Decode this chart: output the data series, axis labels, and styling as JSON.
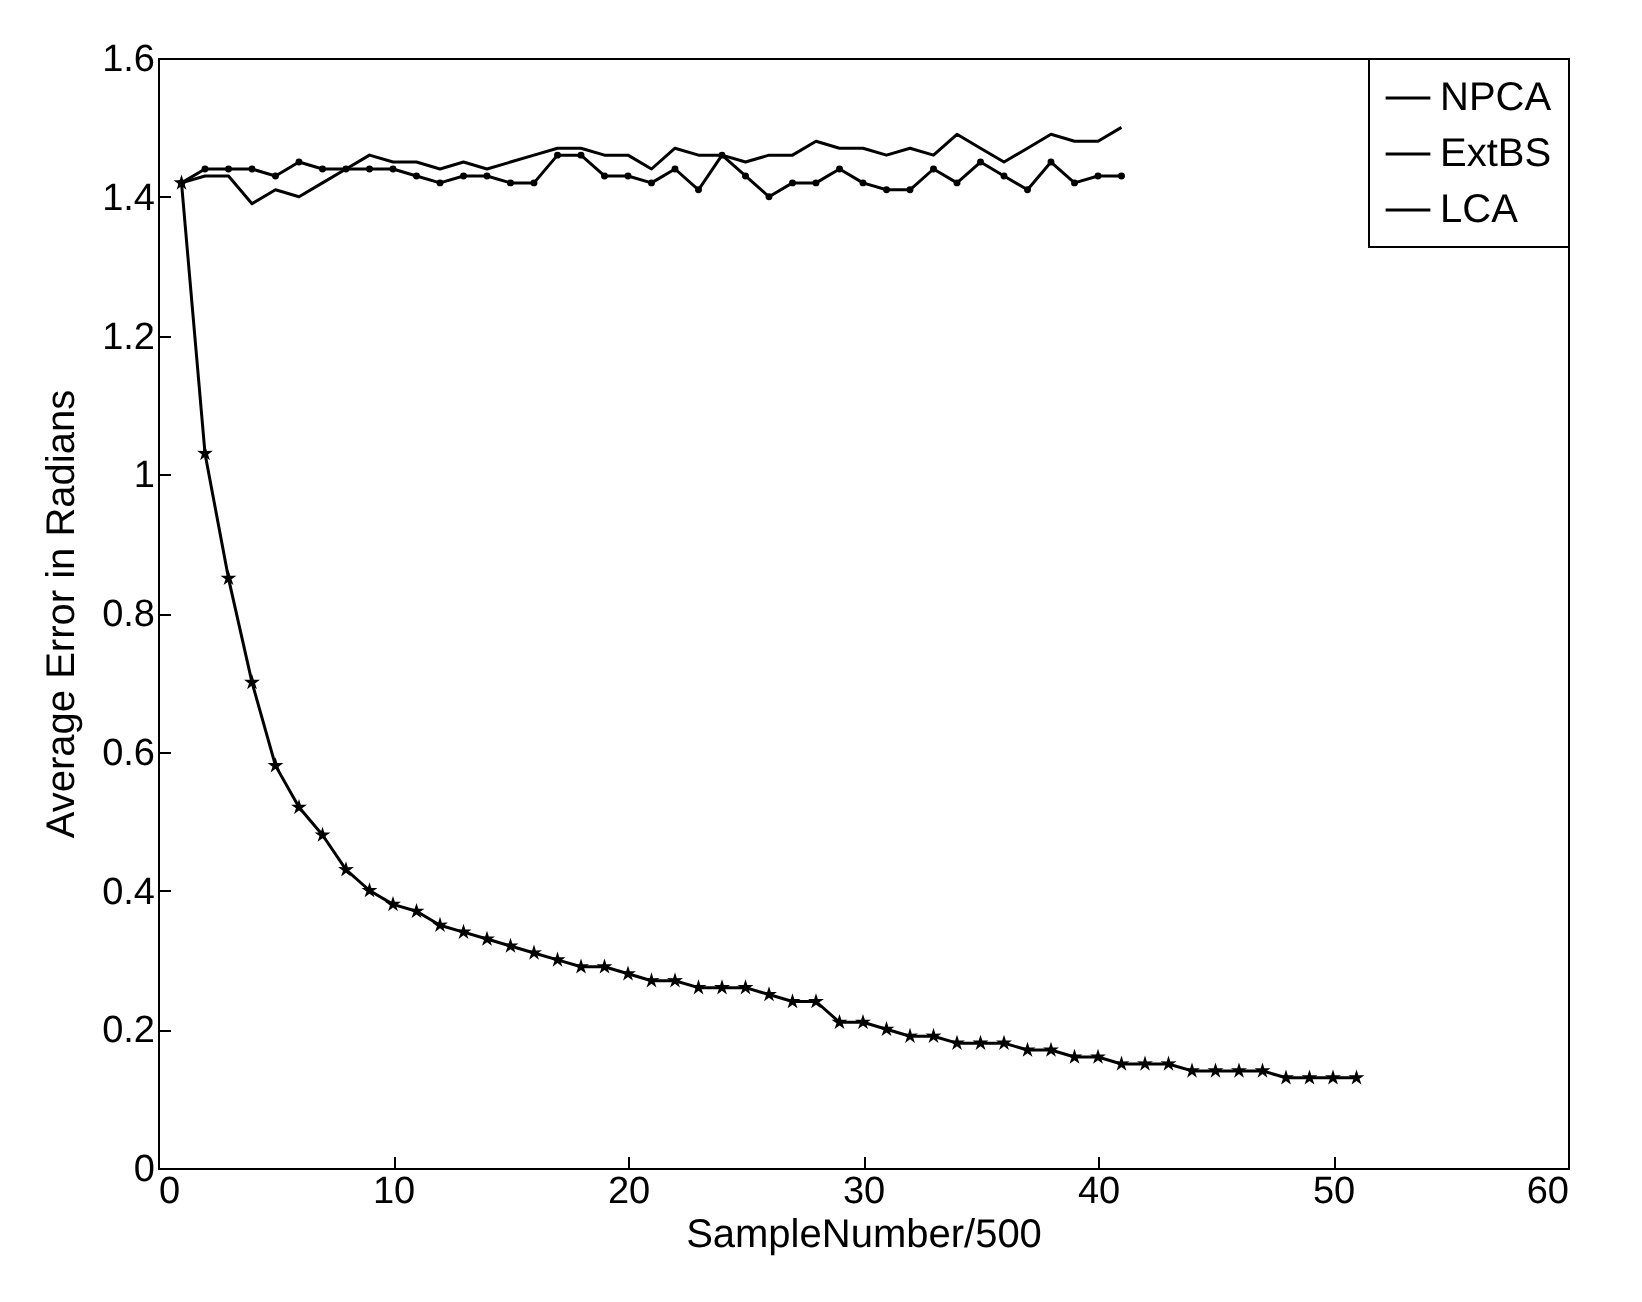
{
  "chart_data": {
    "type": "line",
    "xlabel": "SampleNumber/500",
    "ylabel": "Average Error in Radians",
    "x": [
      1,
      2,
      3,
      4,
      5,
      6,
      7,
      8,
      9,
      10,
      11,
      12,
      13,
      14,
      15,
      16,
      17,
      18,
      19,
      20,
      21,
      22,
      23,
      24,
      25,
      26,
      27,
      28,
      29,
      30,
      31,
      32,
      33,
      34,
      35,
      36,
      37,
      38,
      39,
      40,
      41,
      42,
      43,
      44,
      45,
      46,
      47,
      48,
      49,
      50,
      51
    ],
    "series": [
      {
        "name": "NPCA",
        "color": "#000000",
        "marker": "none",
        "values": [
          1.42,
          1.43,
          1.43,
          1.39,
          1.41,
          1.4,
          1.42,
          1.44,
          1.46,
          1.45,
          1.45,
          1.44,
          1.45,
          1.44,
          1.45,
          1.46,
          1.47,
          1.47,
          1.46,
          1.46,
          1.44,
          1.47,
          1.46,
          1.46,
          1.45,
          1.46,
          1.46,
          1.48,
          1.47,
          1.47,
          1.46,
          1.47,
          1.46,
          1.49,
          1.47,
          1.45,
          1.47,
          1.49,
          1.48,
          1.48,
          1.5,
          null,
          null,
          null,
          null,
          null,
          null,
          null,
          null,
          null,
          null
        ]
      },
      {
        "name": "ExtBS",
        "color": "#000000",
        "marker": "circle",
        "values": [
          1.42,
          1.44,
          1.44,
          1.44,
          1.43,
          1.45,
          1.44,
          1.44,
          1.44,
          1.44,
          1.43,
          1.42,
          1.43,
          1.43,
          1.42,
          1.42,
          1.46,
          1.46,
          1.43,
          1.43,
          1.42,
          1.44,
          1.41,
          1.46,
          1.43,
          1.4,
          1.42,
          1.42,
          1.44,
          1.42,
          1.41,
          1.41,
          1.44,
          1.42,
          1.45,
          1.43,
          1.41,
          1.45,
          1.42,
          1.43,
          1.43,
          null,
          null,
          null,
          null,
          null,
          null,
          null,
          null,
          null,
          null
        ]
      },
      {
        "name": "LCA",
        "color": "#000000",
        "marker": "star",
        "values": [
          1.42,
          1.03,
          0.85,
          0.7,
          0.58,
          0.52,
          0.48,
          0.43,
          0.4,
          0.38,
          0.37,
          0.35,
          0.34,
          0.33,
          0.32,
          0.31,
          0.3,
          0.29,
          0.29,
          0.28,
          0.27,
          0.27,
          0.26,
          0.26,
          0.26,
          0.25,
          0.24,
          0.24,
          0.21,
          0.21,
          0.2,
          0.19,
          0.19,
          0.18,
          0.18,
          0.18,
          0.17,
          0.17,
          0.16,
          0.16,
          0.15,
          0.15,
          0.15,
          0.14,
          0.14,
          0.14,
          0.14,
          0.13,
          0.13,
          0.13,
          0.13
        ]
      }
    ],
    "xlim": [
      0,
      60
    ],
    "xticks": [
      0,
      10,
      20,
      30,
      40,
      50,
      60
    ],
    "ylim": [
      0,
      1.6
    ],
    "yticks": [
      0,
      0.2,
      0.4,
      0.6,
      0.8,
      1,
      1.2,
      1.4,
      1.6
    ],
    "grid": false,
    "legend": "top right",
    "line_style": "solid"
  }
}
